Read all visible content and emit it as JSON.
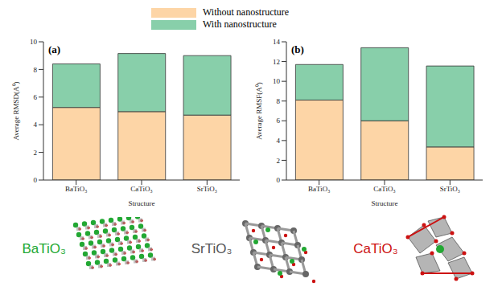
{
  "chart_data": [
    {
      "type": "bar",
      "title": "(a)",
      "stacked": true,
      "legend": "top",
      "x_label": "Structure",
      "y_label": "Average RMSD(A⁰)",
      "categories": [
        "BaTiO₃",
        "CaTiO₃",
        "SrTiO₃"
      ],
      "series": [
        {
          "name": "Without nanostructure",
          "color": "#fdd5a6",
          "values": [
            5.25,
            4.95,
            4.7
          ]
        },
        {
          "name": "With nanostructure",
          "color": "#88cfaa",
          "values": [
            3.15,
            4.2,
            4.3
          ]
        }
      ],
      "ylim": [
        0,
        10
      ],
      "yticks": [
        0,
        2,
        4,
        6,
        8,
        10
      ]
    },
    {
      "type": "bar",
      "title": "(b)",
      "stacked": true,
      "x_label": "Structure",
      "y_label": "Average RMSF(A⁰)",
      "categories": [
        "BaTiO₃",
        "CaTiO₃",
        "SrTiO₃"
      ],
      "series": [
        {
          "name": "Without nanostructure",
          "color": "#fdd5a6",
          "values": [
            8.1,
            6.0,
            3.35
          ]
        },
        {
          "name": "With nanostructure",
          "color": "#88cfaa",
          "values": [
            3.6,
            7.4,
            8.2
          ]
        }
      ],
      "ylim": [
        0,
        14
      ],
      "yticks": [
        0,
        2,
        4,
        6,
        8,
        10,
        12,
        14
      ]
    }
  ],
  "structures": [
    "BaTiO₃",
    "SrTiO₃",
    "CaTiO₃"
  ]
}
